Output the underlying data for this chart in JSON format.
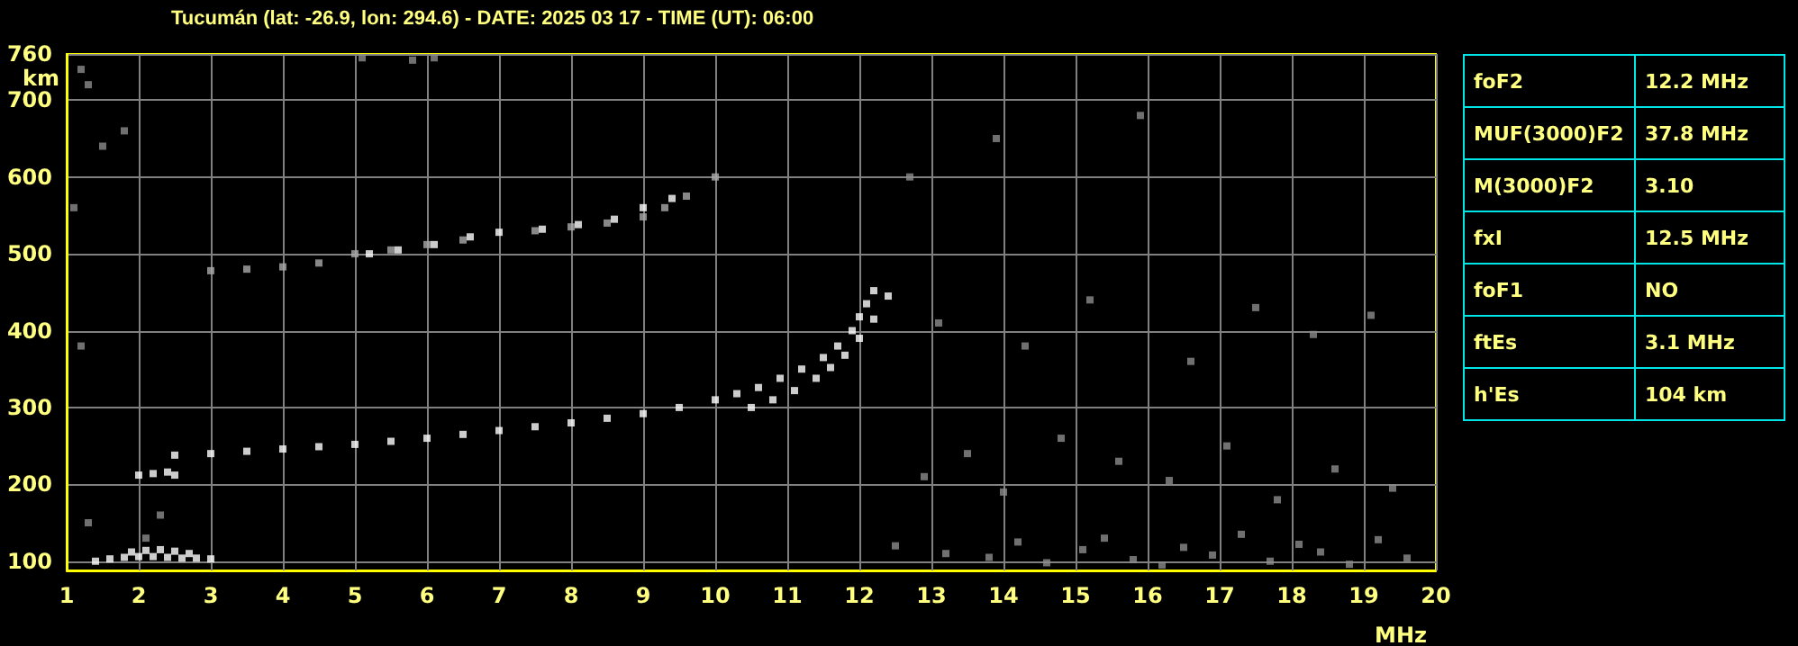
{
  "chart_data": {
    "type": "scatter",
    "title": "Tucumán (lat: -26.9, lon: 294.6) - DATE: 2025 03 17 - TIME (UT): 06:00",
    "xlabel": "MHz",
    "ylabel": "km",
    "xlim": [
      1,
      20
    ],
    "xticks": [
      1,
      2,
      3,
      4,
      5,
      6,
      7,
      8,
      9,
      10,
      11,
      12,
      13,
      14,
      15,
      16,
      17,
      18,
      19,
      20
    ],
    "ylim": [
      88,
      760
    ],
    "yticks": [
      100,
      200,
      300,
      400,
      500,
      600,
      700,
      760
    ],
    "grid": true,
    "marker": "square",
    "annotations": [
      "foF2",
      "12.2 MHz",
      "MUF(3000)F2",
      "37.8 MHz",
      "M(3000)F2",
      "3.10",
      "fxI",
      "12.5 MHz",
      "foF1",
      "NO",
      "ftEs",
      "3.1 MHz",
      "h'Es",
      "104 km"
    ],
    "series": [
      {
        "color": "#ffffff",
        "x": [
          1.4,
          1.6,
          1.8,
          2.0,
          2.2,
          2.4,
          2.6,
          2.8,
          3.0,
          1.9,
          2.1,
          2.3,
          2.5,
          2.7
        ],
        "values": [
          100,
          103,
          105,
          106,
          106,
          105,
          104,
          104,
          103,
          112,
          114,
          115,
          113,
          110
        ]
      },
      {
        "color": "#ffffff",
        "x": [
          2.0,
          2.2,
          2.4,
          2.5
        ],
        "values": [
          212,
          214,
          216,
          212
        ]
      },
      {
        "color": "#ffffff",
        "x": [
          2.5,
          3,
          3.5,
          4,
          4.5,
          5,
          5.5,
          6,
          6.5,
          7,
          7.5,
          8,
          8.5,
          9,
          9.5,
          10,
          10.3,
          10.6,
          10.9,
          11.2,
          11.5,
          11.7,
          11.9,
          12.0,
          12.1,
          12.2
        ],
        "values": [
          238,
          240,
          243,
          246,
          249,
          252,
          256,
          260,
          265,
          270,
          275,
          280,
          286,
          292,
          300,
          310,
          318,
          326,
          338,
          350,
          365,
          380,
          400,
          418,
          435,
          452
        ]
      },
      {
        "color": "#ffffff",
        "x": [
          10.5,
          10.8,
          11.1,
          11.4,
          11.6,
          11.8,
          12.0,
          12.2,
          12.4
        ],
        "values": [
          300,
          310,
          322,
          338,
          352,
          368,
          390,
          415,
          445
        ]
      },
      {
        "color": "#aaaaaa",
        "x": [
          3,
          3.5,
          4,
          4.5,
          5,
          5.5,
          6,
          6.5,
          7,
          7.5,
          8,
          8.5,
          9,
          9.3,
          9.6,
          10
        ],
        "values": [
          478,
          480,
          483,
          488,
          500,
          505,
          512,
          518,
          null,
          530,
          535,
          540,
          548,
          560,
          575,
          600
        ]
      },
      {
        "color": "#ffffff",
        "x": [
          5.2,
          5.6,
          6.1,
          6.6,
          7.0,
          7.6,
          8.1,
          8.6,
          9.0,
          9.4
        ],
        "values": [
          500,
          505,
          512,
          522,
          528,
          532,
          538,
          545,
          560,
          572
        ]
      },
      {
        "color": "#8c8c8c",
        "x": [
          1.2,
          1.3,
          1.5,
          1.8,
          1.1,
          1.2,
          1.3,
          2.1,
          2.3,
          5.1,
          5.8,
          6.1,
          12.5,
          13.2,
          13.8,
          14.2,
          14.6,
          15.1,
          15.4,
          15.8,
          16.2,
          16.5,
          16.9,
          17.3,
          17.7,
          18.1,
          18.4,
          18.8,
          19.2,
          19.6,
          12.9,
          13.5,
          14.0,
          14.8,
          15.6,
          16.3,
          17.1,
          17.8,
          18.6,
          19.4,
          13.1,
          14.3,
          15.2,
          16.6,
          17.5,
          18.3,
          19.1,
          12.7,
          13.9,
          15.9
        ],
        "values": [
          740,
          720,
          640,
          660,
          560,
          380,
          150,
          130,
          160,
          755,
          752,
          755,
          120,
          110,
          105,
          125,
          98,
          115,
          130,
          102,
          95,
          118,
          108,
          135,
          100,
          122,
          112,
          96,
          128,
          104,
          210,
          240,
          190,
          260,
          230,
          205,
          250,
          180,
          220,
          195,
          410,
          380,
          440,
          360,
          430,
          395,
          420,
          600,
          650,
          680
        ]
      }
    ]
  }
}
